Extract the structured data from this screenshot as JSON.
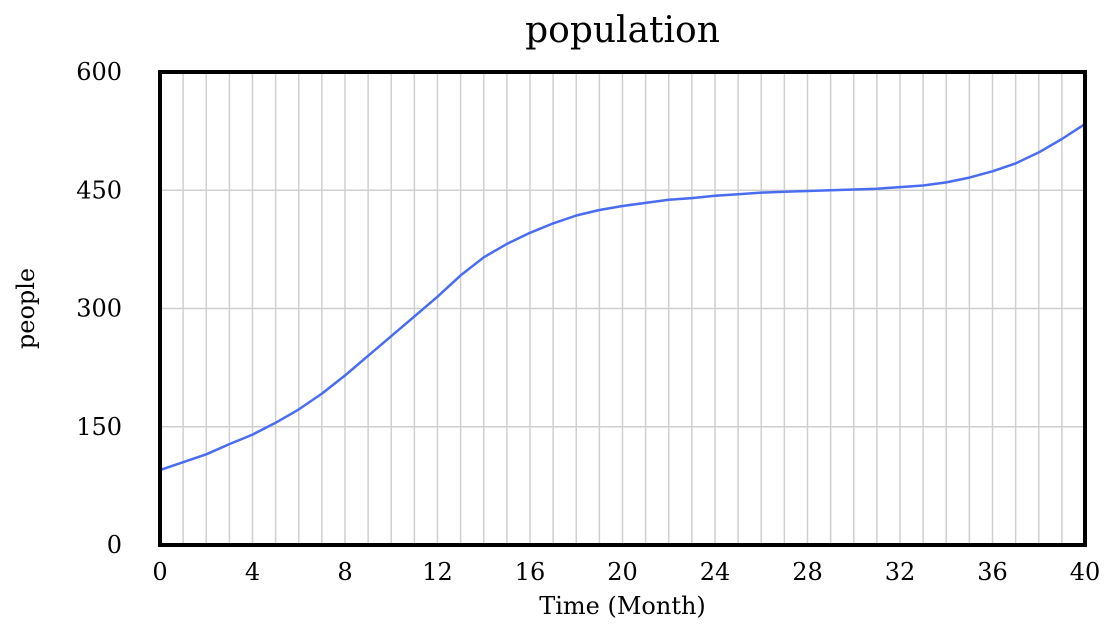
{
  "chart_data": {
    "type": "line",
    "title": "population",
    "xlabel": "Time (Month)",
    "ylabel": "people",
    "xlim": [
      0,
      40
    ],
    "ylim": [
      0,
      600
    ],
    "x_ticks": [
      0,
      4,
      8,
      12,
      16,
      20,
      24,
      28,
      32,
      36,
      40
    ],
    "x_tick_labels": [
      "0",
      "4",
      "8",
      "12",
      "16",
      "20",
      "24",
      "28",
      "32",
      "36",
      "40"
    ],
    "y_ticks": [
      0,
      150,
      300,
      450,
      600
    ],
    "y_tick_labels": [
      "0",
      "150",
      "300",
      "450",
      "600"
    ],
    "grid": true,
    "vertical_gridlines_every": 1,
    "legend": false,
    "series": [
      {
        "color": "#4a6cf0",
        "x": [
          0,
          1,
          2,
          3,
          4,
          5,
          6,
          7,
          8,
          9,
          10,
          11,
          12,
          13,
          14,
          15,
          16,
          17,
          18,
          19,
          20,
          21,
          22,
          23,
          24,
          25,
          26,
          27,
          28,
          29,
          30,
          31,
          32,
          33,
          34,
          35,
          36,
          37,
          38,
          39,
          40
        ],
        "values": [
          95,
          105,
          115,
          128,
          140,
          155,
          172,
          192,
          215,
          240,
          265,
          290,
          315,
          342,
          365,
          382,
          396,
          408,
          418,
          425,
          430,
          434,
          438,
          440,
          443,
          445,
          447,
          448,
          449,
          450,
          451,
          452,
          454,
          456,
          460,
          466,
          474,
          484,
          498,
          515,
          534
        ]
      }
    ]
  }
}
